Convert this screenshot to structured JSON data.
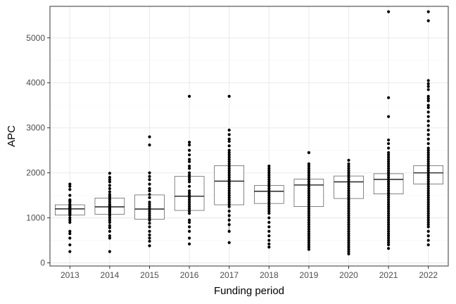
{
  "chart_data": {
    "type": "boxplot",
    "title": "",
    "xlabel": "Funding period",
    "ylabel": "APC",
    "ylim": [
      -70,
      5700
    ],
    "yticks": [
      0,
      1000,
      2000,
      3000,
      4000,
      5000
    ],
    "grid": true,
    "legend": "none",
    "colors": {
      "points": "#000000",
      "box": "#333333",
      "grid_major": "#ebebeb",
      "grid_minor": "#f5f5f5",
      "panel_border": "#333333"
    },
    "categories": [
      "2013",
      "2014",
      "2015",
      "2016",
      "2017",
      "2018",
      "2019",
      "2020",
      "2021",
      "2022"
    ],
    "boxes": [
      {
        "q1": 1060,
        "median": 1200,
        "q3": 1290,
        "whisker_low": 1060,
        "whisker_high": 1290
      },
      {
        "q1": 1080,
        "median": 1245,
        "q3": 1440,
        "whisker_low": 1080,
        "whisker_high": 1440
      },
      {
        "q1": 970,
        "median": 1195,
        "q3": 1510,
        "whisker_low": 970,
        "whisker_high": 1510
      },
      {
        "q1": 1165,
        "median": 1480,
        "q3": 1920,
        "whisker_low": 1165,
        "whisker_high": 1920
      },
      {
        "q1": 1290,
        "median": 1815,
        "q3": 2160,
        "whisker_low": 700,
        "whisker_high": 2160
      },
      {
        "q1": 1320,
        "median": 1590,
        "q3": 1720,
        "whisker_low": 1320,
        "whisker_high": 1720
      },
      {
        "q1": 1250,
        "median": 1730,
        "q3": 1860,
        "whisker_low": 1250,
        "whisker_high": 1860
      },
      {
        "q1": 1430,
        "median": 1800,
        "q3": 1930,
        "whisker_low": 1430,
        "whisker_high": 1930
      },
      {
        "q1": 1530,
        "median": 1855,
        "q3": 1980,
        "whisker_low": 1530,
        "whisker_high": 1980
      },
      {
        "q1": 1750,
        "median": 2000,
        "q3": 2160,
        "whisker_low": 1750,
        "whisker_high": 2160
      }
    ],
    "points": [
      [
        1750,
        1700,
        1630,
        1500,
        1400,
        1380,
        1350,
        1300,
        1280,
        1250,
        1230,
        1210,
        1200,
        1190,
        1180,
        1160,
        1140,
        1120,
        1100,
        1080,
        1060,
        1000,
        950,
        900,
        700,
        650,
        550,
        400,
        250
      ],
      [
        1990,
        1900,
        1850,
        1800,
        1720,
        1650,
        1580,
        1520,
        1480,
        1440,
        1400,
        1350,
        1300,
        1280,
        1250,
        1230,
        1200,
        1180,
        1150,
        1120,
        1080,
        1050,
        1000,
        950,
        900,
        830,
        780,
        700,
        600,
        550,
        250
      ],
      [
        2800,
        2620,
        2000,
        1920,
        1850,
        1750,
        1650,
        1600,
        1520,
        1450,
        1350,
        1300,
        1250,
        1200,
        1150,
        1100,
        1050,
        1000,
        950,
        880,
        800,
        700,
        620,
        550,
        480,
        380
      ],
      [
        3700,
        2680,
        2620,
        2500,
        2400,
        2300,
        2250,
        2150,
        2100,
        2000,
        1950,
        1900,
        1850,
        1800,
        1700,
        1600,
        1550,
        1500,
        1450,
        1400,
        1350,
        1300,
        1250,
        1200,
        1150,
        1100,
        950,
        900,
        800,
        700,
        550,
        420
      ],
      [
        3700,
        2950,
        2850,
        2750,
        2700,
        2600,
        2500,
        2450,
        2400,
        2350,
        2300,
        2250,
        2200,
        2150,
        2100,
        2050,
        2000,
        1950,
        1900,
        1850,
        1800,
        1750,
        1700,
        1650,
        1600,
        1550,
        1500,
        1450,
        1400,
        1350,
        1300,
        1250,
        1150,
        1050,
        950,
        850,
        700,
        450
      ],
      [
        2150,
        2100,
        2050,
        2000,
        1950,
        1900,
        1850,
        1800,
        1750,
        1700,
        1650,
        1600,
        1550,
        1500,
        1450,
        1400,
        1350,
        1300,
        1250,
        1200,
        1150,
        1100,
        1000,
        900,
        800,
        700,
        600,
        500,
        420,
        350
      ],
      [
        2450,
        2200,
        2150,
        2100,
        2050,
        2000,
        1950,
        1900,
        1850,
        1800,
        1750,
        1700,
        1650,
        1600,
        1550,
        1500,
        1450,
        1400,
        1350,
        1300,
        1250,
        1200,
        1150,
        1100,
        1050,
        1000,
        950,
        900,
        850,
        800,
        750,
        700,
        650,
        600,
        550,
        500,
        450,
        400,
        350,
        300
      ],
      [
        2280,
        2200,
        2150,
        2100,
        2050,
        2000,
        1950,
        1900,
        1850,
        1800,
        1750,
        1700,
        1650,
        1600,
        1550,
        1500,
        1450,
        1400,
        1350,
        1300,
        1250,
        1200,
        1150,
        1100,
        1050,
        1000,
        950,
        900,
        850,
        800,
        750,
        700,
        650,
        600,
        550,
        500,
        450,
        400,
        350,
        300,
        250,
        200
      ],
      [
        5580,
        3670,
        3250,
        2730,
        2650,
        2550,
        2450,
        2400,
        2350,
        2300,
        2250,
        2200,
        2150,
        2100,
        2050,
        2000,
        1950,
        1900,
        1850,
        1800,
        1750,
        1700,
        1650,
        1600,
        1550,
        1500,
        1450,
        1400,
        1350,
        1300,
        1250,
        1200,
        1150,
        1100,
        1050,
        1000,
        950,
        900,
        850,
        800,
        750,
        700,
        650,
        600,
        550,
        500,
        450,
        400,
        320
      ],
      [
        5580,
        5380,
        4050,
        3980,
        3920,
        3850,
        3700,
        3650,
        3600,
        3500,
        3450,
        3350,
        3250,
        3150,
        3050,
        2950,
        2850,
        2750,
        2650,
        2550,
        2500,
        2450,
        2400,
        2350,
        2300,
        2250,
        2200,
        2150,
        2100,
        2050,
        2000,
        1950,
        1900,
        1850,
        1800,
        1750,
        1700,
        1650,
        1600,
        1550,
        1500,
        1450,
        1400,
        1350,
        1300,
        1250,
        1200,
        1150,
        1100,
        1050,
        1000,
        950,
        900,
        850,
        800,
        700,
        600,
        500,
        400
      ]
    ]
  }
}
